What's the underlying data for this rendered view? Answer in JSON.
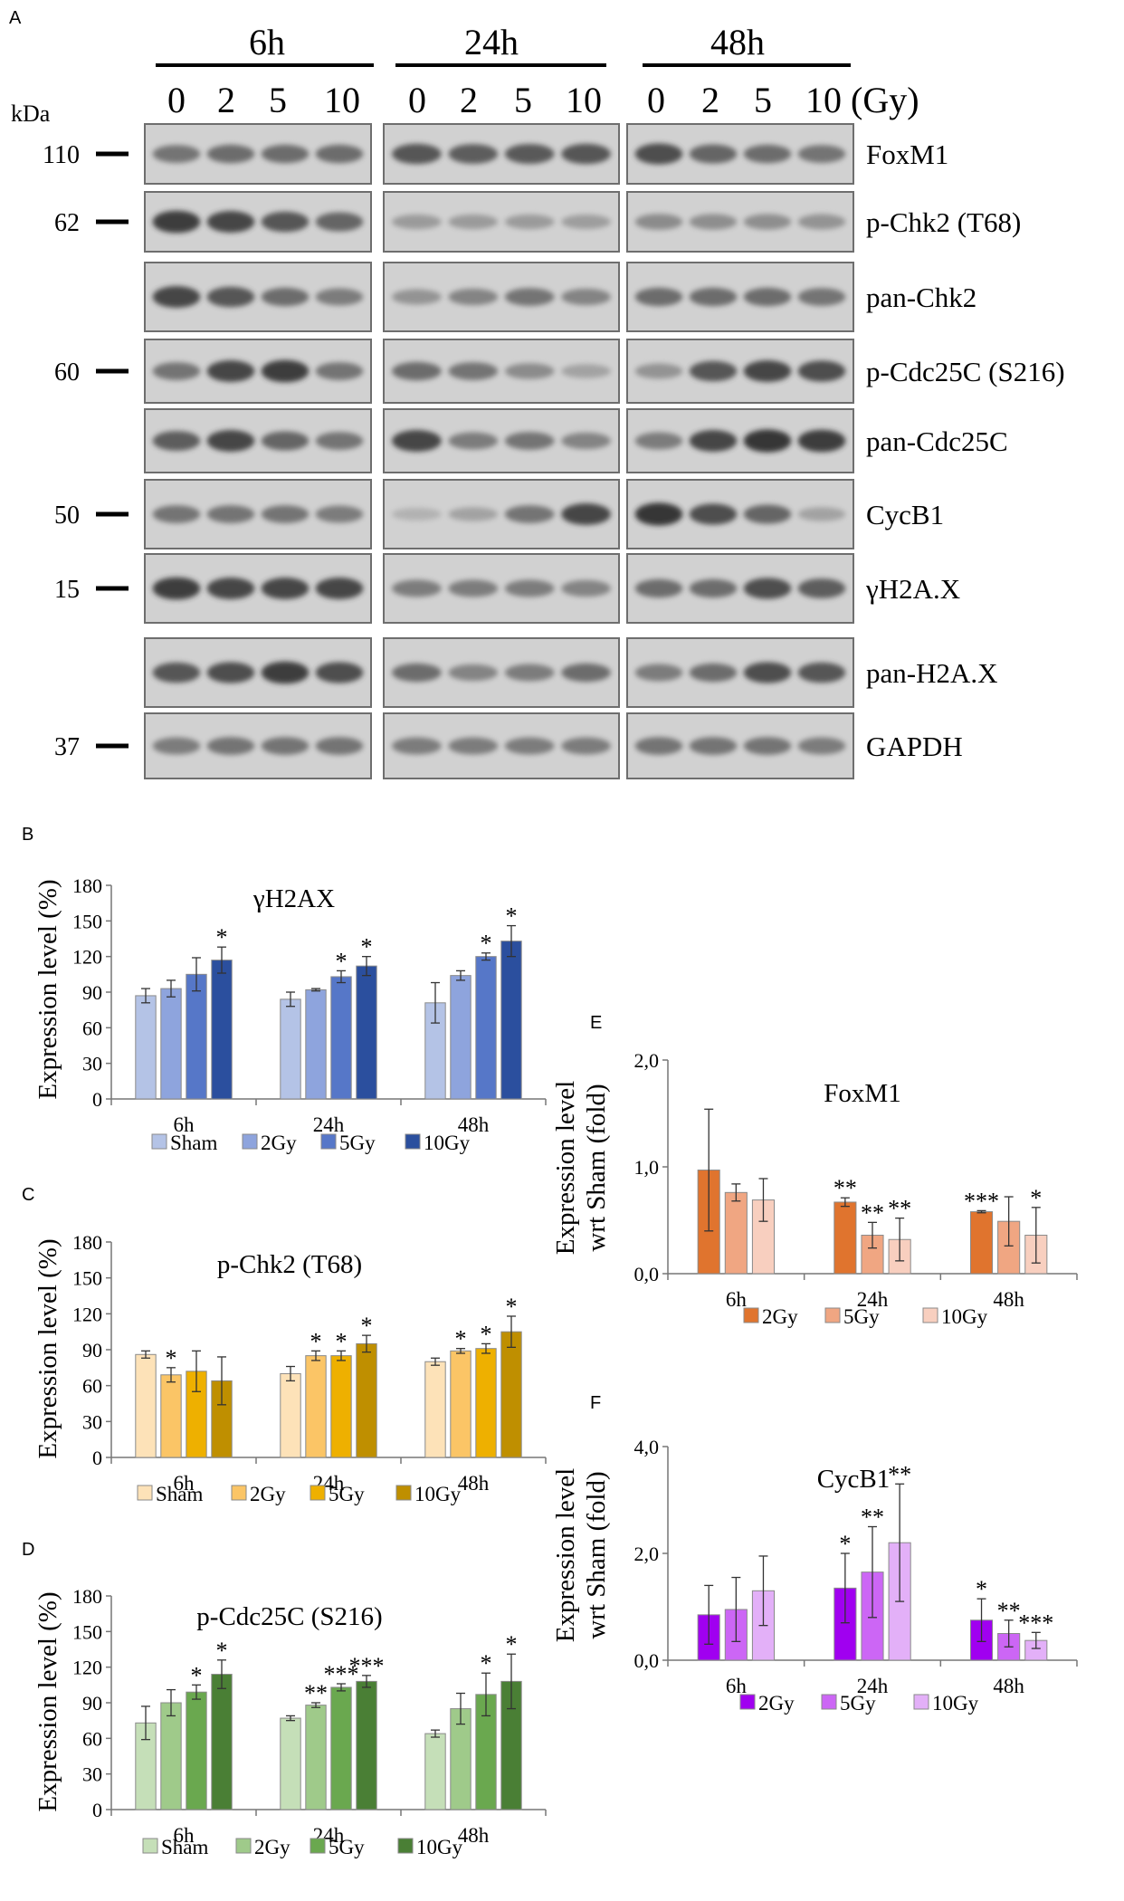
{
  "panel_letters": {
    "A": "A",
    "B": "B",
    "C": "C",
    "D": "D",
    "E": "E",
    "F": "F"
  },
  "blot": {
    "kda_label": "kDa",
    "timepoints": [
      "6h",
      "24h",
      "48h"
    ],
    "doses": [
      "0",
      "2",
      "5",
      "10"
    ],
    "dose_unit": "(Gy)",
    "markers": [
      {
        "kda": "110",
        "row": 0
      },
      {
        "kda": "62",
        "row": 1
      },
      {
        "kda": "60",
        "row": 3
      },
      {
        "kda": "50",
        "row": 5
      },
      {
        "kda": "15",
        "row": 6
      },
      {
        "kda": "37",
        "row": 8
      }
    ],
    "proteins": [
      "FoxM1",
      "p-Chk2 (T68)",
      "pan-Chk2",
      "p-Cdc25C (S216)",
      "pan-Cdc25C",
      "CycB1",
      "γH2A.X",
      "pan-H2A.X",
      "GAPDH"
    ],
    "band_intensity": [
      [
        [
          0.55,
          0.6,
          0.6,
          0.6
        ],
        [
          0.75,
          0.7,
          0.72,
          0.75
        ],
        [
          0.8,
          0.65,
          0.6,
          0.55
        ]
      ],
      [
        [
          0.9,
          0.85,
          0.75,
          0.65
        ],
        [
          0.3,
          0.3,
          0.3,
          0.28
        ],
        [
          0.4,
          0.38,
          0.38,
          0.35
        ]
      ],
      [
        [
          0.85,
          0.75,
          0.6,
          0.5
        ],
        [
          0.35,
          0.45,
          0.55,
          0.45
        ],
        [
          0.6,
          0.6,
          0.6,
          0.55
        ]
      ],
      [
        [
          0.55,
          0.85,
          0.9,
          0.55
        ],
        [
          0.6,
          0.55,
          0.4,
          0.25
        ],
        [
          0.35,
          0.75,
          0.85,
          0.8
        ]
      ],
      [
        [
          0.7,
          0.85,
          0.65,
          0.55
        ],
        [
          0.85,
          0.5,
          0.55,
          0.45
        ],
        [
          0.5,
          0.85,
          0.95,
          0.9
        ]
      ],
      [
        [
          0.55,
          0.55,
          0.55,
          0.5
        ],
        [
          0.15,
          0.25,
          0.55,
          0.85
        ],
        [
          0.95,
          0.8,
          0.65,
          0.25
        ]
      ],
      [
        [
          0.9,
          0.85,
          0.85,
          0.85
        ],
        [
          0.5,
          0.5,
          0.5,
          0.45
        ],
        [
          0.6,
          0.6,
          0.8,
          0.7
        ]
      ],
      [
        [
          0.75,
          0.8,
          0.9,
          0.8
        ],
        [
          0.6,
          0.45,
          0.5,
          0.6
        ],
        [
          0.5,
          0.6,
          0.8,
          0.75
        ]
      ],
      [
        [
          0.5,
          0.55,
          0.55,
          0.55
        ],
        [
          0.5,
          0.5,
          0.5,
          0.5
        ],
        [
          0.55,
          0.55,
          0.55,
          0.5
        ]
      ]
    ]
  },
  "chart_data": [
    {
      "id": "B",
      "type": "bar",
      "title": "γH2AX",
      "ylabel": "Expression level (%)",
      "xlabel": "",
      "categories": [
        "6h",
        "24h",
        "48h"
      ],
      "ylim": [
        0,
        180
      ],
      "yticks": [
        "0",
        "30",
        "60",
        "90",
        "120",
        "150",
        "180"
      ],
      "legend": "bottom",
      "series": [
        {
          "name": "Sham",
          "color": "#b4c3e6",
          "values": [
            87,
            84,
            81
          ],
          "errors": [
            6,
            6,
            17
          ],
          "sig": [
            "",
            "",
            ""
          ]
        },
        {
          "name": "2Gy",
          "color": "#8ea4dd",
          "values": [
            93,
            92,
            104
          ],
          "errors": [
            7,
            1,
            4
          ],
          "sig": [
            "",
            "",
            ""
          ]
        },
        {
          "name": "5Gy",
          "color": "#5677c8",
          "values": [
            105,
            103,
            120
          ],
          "errors": [
            14,
            5,
            3
          ],
          "sig": [
            "",
            "*",
            "*"
          ]
        },
        {
          "name": "10Gy",
          "color": "#2b4f9e",
          "values": [
            117,
            112,
            133
          ],
          "errors": [
            11,
            8,
            13
          ],
          "sig": [
            "*",
            "*",
            "*"
          ]
        }
      ]
    },
    {
      "id": "C",
      "type": "bar",
      "title": "p-Chk2 (T68)",
      "ylabel": "Expression level (%)",
      "xlabel": "",
      "categories": [
        "6h",
        "24h",
        "48h"
      ],
      "ylim": [
        0,
        180
      ],
      "yticks": [
        "0",
        "30",
        "60",
        "90",
        "120",
        "150",
        "180"
      ],
      "legend": "bottom",
      "series": [
        {
          "name": "Sham",
          "color": "#fde2b8",
          "values": [
            86,
            70,
            80
          ],
          "errors": [
            3,
            6,
            3
          ],
          "sig": [
            "",
            "",
            ""
          ]
        },
        {
          "name": "2Gy",
          "color": "#fbc566",
          "values": [
            69,
            85,
            89
          ],
          "errors": [
            6,
            4,
            2
          ],
          "sig": [
            "*",
            "*",
            "*"
          ]
        },
        {
          "name": "5Gy",
          "color": "#eeb000",
          "values": [
            72,
            85,
            91
          ],
          "errors": [
            17,
            4,
            4
          ],
          "sig": [
            "",
            "*",
            "*"
          ]
        },
        {
          "name": "10Gy",
          "color": "#bf8f00",
          "values": [
            64,
            95,
            105
          ],
          "errors": [
            20,
            7,
            13
          ],
          "sig": [
            "",
            "*",
            "*"
          ]
        }
      ]
    },
    {
      "id": "D",
      "type": "bar",
      "title": "p-Cdc25C (S216)",
      "ylabel": "Expression level (%)",
      "xlabel": "",
      "categories": [
        "6h",
        "24h",
        "48h"
      ],
      "ylim": [
        0,
        180
      ],
      "yticks": [
        "0",
        "30",
        "60",
        "90",
        "120",
        "150",
        "180"
      ],
      "legend": "bottom",
      "series": [
        {
          "name": "Sham",
          "color": "#c5dfb8",
          "values": [
            73,
            77,
            64
          ],
          "errors": [
            14,
            2,
            3
          ],
          "sig": [
            "",
            "",
            ""
          ]
        },
        {
          "name": "2Gy",
          "color": "#9fca8a",
          "values": [
            90,
            88,
            85
          ],
          "errors": [
            11,
            2,
            13
          ],
          "sig": [
            "",
            "**",
            ""
          ]
        },
        {
          "name": "5Gy",
          "color": "#6aa84f",
          "values": [
            99,
            103,
            97
          ],
          "errors": [
            6,
            3,
            18
          ],
          "sig": [
            "*",
            "***",
            "*"
          ]
        },
        {
          "name": "10Gy",
          "color": "#4a7f35",
          "values": [
            114,
            108,
            108
          ],
          "errors": [
            12,
            5,
            23
          ],
          "sig": [
            "*",
            "***",
            "*"
          ]
        }
      ]
    },
    {
      "id": "E",
      "type": "bar",
      "title": "FoxM1",
      "ylabel": "Expression level wrt Sham (fold)",
      "xlabel": "",
      "categories": [
        "6h",
        "24h",
        "48h"
      ],
      "ylim": [
        0,
        2
      ],
      "yticks": [
        "0,0",
        "1,0",
        "2,0"
      ],
      "legend": "bottom",
      "series": [
        {
          "name": "2Gy",
          "color": "#e0742e",
          "values": [
            0.97,
            0.67,
            0.58
          ],
          "errors": [
            0.57,
            0.04,
            0.01
          ],
          "sig": [
            "",
            "**",
            "***"
          ]
        },
        {
          "name": "5Gy",
          "color": "#f0a682",
          "values": [
            0.76,
            0.36,
            0.49
          ],
          "errors": [
            0.08,
            0.12,
            0.23
          ],
          "sig": [
            "",
            "**",
            ""
          ]
        },
        {
          "name": "10Gy",
          "color": "#f8cfbf",
          "values": [
            0.69,
            0.32,
            0.36
          ],
          "errors": [
            0.2,
            0.2,
            0.26
          ],
          "sig": [
            "",
            "**",
            "*"
          ]
        }
      ]
    },
    {
      "id": "F",
      "type": "bar",
      "title": "CycB1",
      "ylabel": "Expression level wrt Sham (fold)",
      "xlabel": "",
      "categories": [
        "6h",
        "24h",
        "48h"
      ],
      "ylim": [
        0,
        4
      ],
      "yticks": [
        "0,0",
        "2,0",
        "4,0"
      ],
      "legend": "bottom",
      "series": [
        {
          "name": "2Gy",
          "color": "#a000f0",
          "values": [
            0.85,
            1.35,
            0.75
          ],
          "errors": [
            0.55,
            0.65,
            0.4
          ],
          "sig": [
            "",
            "*",
            "*"
          ]
        },
        {
          "name": "5Gy",
          "color": "#cc66f5",
          "values": [
            0.95,
            1.65,
            0.5
          ],
          "errors": [
            0.6,
            0.85,
            0.25
          ],
          "sig": [
            "",
            "**",
            "**"
          ]
        },
        {
          "name": "10Gy",
          "color": "#e3b0f8",
          "values": [
            1.3,
            2.2,
            0.37
          ],
          "errors": [
            0.65,
            1.1,
            0.15
          ],
          "sig": [
            "",
            "**",
            "***"
          ]
        }
      ]
    }
  ]
}
